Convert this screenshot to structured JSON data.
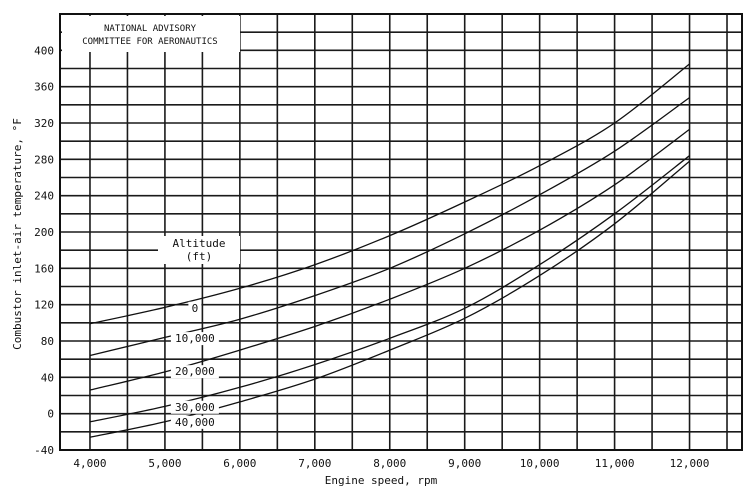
{
  "chart_data": {
    "type": "line",
    "stamp": [
      "NATIONAL ADVISORY",
      "COMMITTEE FOR AERONAUTICS"
    ],
    "xlabel": "Engine speed, rpm",
    "ylabel": "Combustor inlet-air temperature, °F",
    "xlim": [
      3600,
      12700
    ],
    "ylim": [
      -40,
      440
    ],
    "x_ticks": [
      4000,
      5000,
      6000,
      7000,
      8000,
      9000,
      10000,
      11000,
      12000
    ],
    "x_tick_labels": [
      "4,000",
      "5,000",
      "6,000",
      "7,000",
      "8,000",
      "9,000",
      "10,000",
      "11,000",
      "12,000"
    ],
    "y_ticks": [
      -40,
      0,
      40,
      80,
      120,
      160,
      200,
      240,
      280,
      320,
      360,
      400
    ],
    "y_tick_labels": [
      "-40",
      "0",
      "40",
      "80",
      "120",
      "160",
      "200",
      "240",
      "280",
      "320",
      "360",
      "400"
    ],
    "grid": true,
    "legend_title": [
      "Altitude",
      "(ft)"
    ],
    "series": [
      {
        "name": "0",
        "x": [
          4000,
          5000,
          6000,
          7000,
          8000,
          9000,
          10000,
          11000,
          12000
        ],
        "values": [
          99,
          117,
          138,
          164,
          196,
          233,
          273,
          320,
          385
        ]
      },
      {
        "name": "10,000",
        "x": [
          4000,
          5000,
          6000,
          7000,
          8000,
          9000,
          10000,
          11000,
          12000
        ],
        "values": [
          64,
          84,
          104,
          130,
          160,
          198,
          241,
          289,
          348
        ]
      },
      {
        "name": "20,000",
        "x": [
          4000,
          5000,
          6000,
          7000,
          8000,
          9000,
          10000,
          11000,
          12000
        ],
        "values": [
          26,
          46,
          70,
          96,
          126,
          160,
          202,
          252,
          313
        ]
      },
      {
        "name": "30,000",
        "x": [
          4000,
          5000,
          6000,
          7000,
          8000,
          9000,
          10000,
          11000,
          12000
        ],
        "values": [
          -9,
          8,
          29,
          54,
          83,
          116,
          164,
          220,
          284
        ]
      },
      {
        "name": "40,000",
        "x": [
          4000,
          5000,
          6000,
          7000,
          8000,
          9000,
          10000,
          11000,
          12000
        ],
        "values": [
          -26,
          -9,
          13,
          38,
          70,
          105,
          152,
          209,
          278
        ]
      }
    ]
  }
}
